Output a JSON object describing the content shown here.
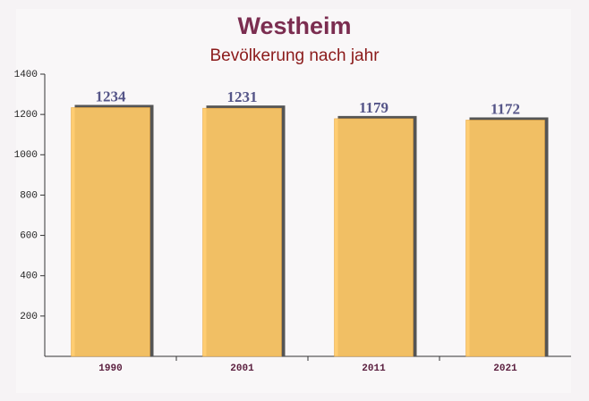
{
  "chart_data": {
    "type": "bar",
    "title": "Westheim",
    "subtitle": "Bevölkerung nach jahr",
    "categories": [
      "1990",
      "2001",
      "2011",
      "2021"
    ],
    "values": [
      1234,
      1231,
      1179,
      1172
    ],
    "color": "#ffc966",
    "ylim": [
      0,
      1400
    ],
    "yticks": [
      200,
      400,
      600,
      800,
      1000,
      1200,
      1400
    ],
    "grid": false
  }
}
